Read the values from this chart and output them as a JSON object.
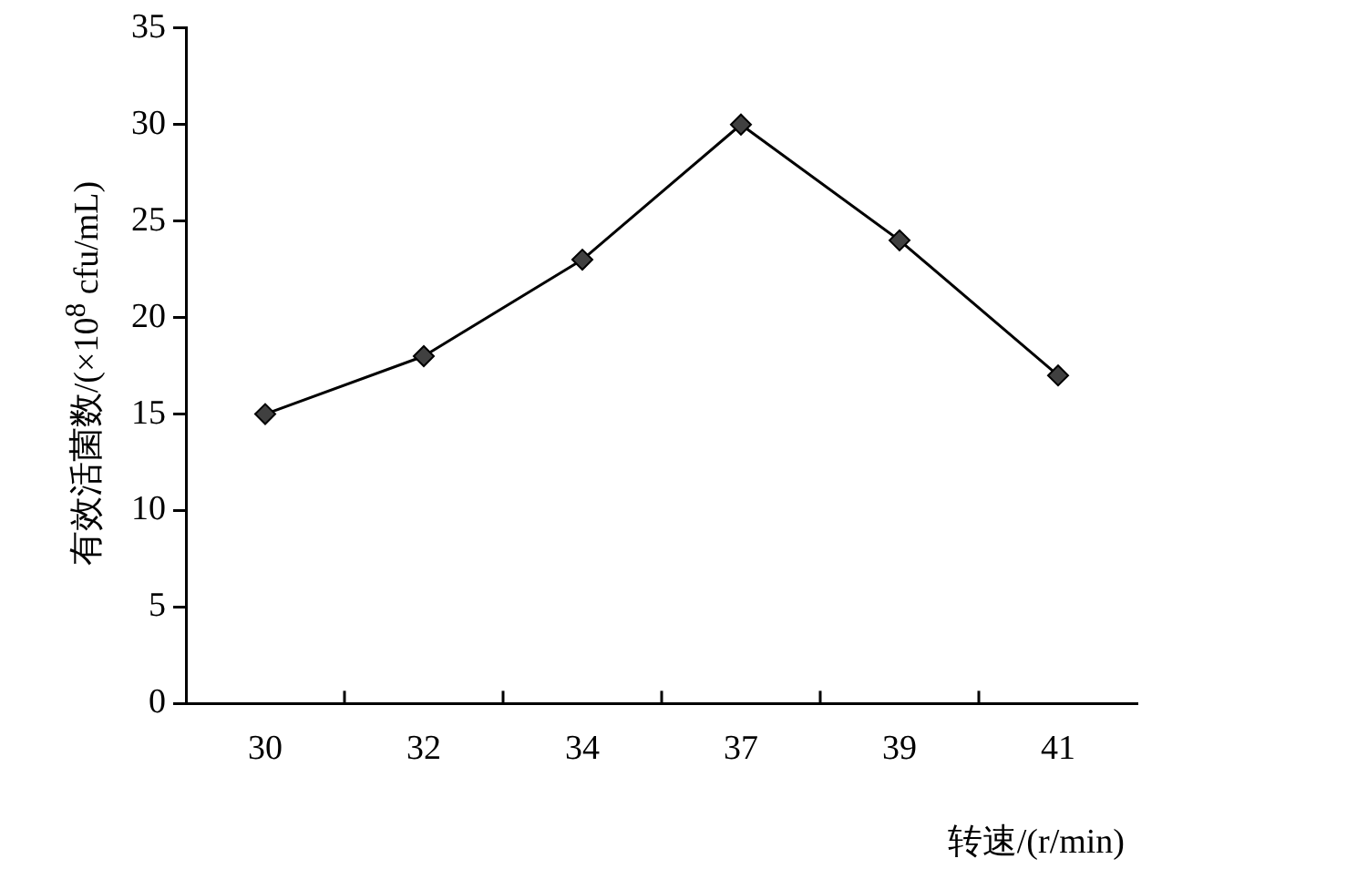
{
  "chart_data": {
    "type": "line",
    "xlabel": "转速/(r/min)",
    "ylabel": "有效活菌数/(×10$^{8}$ cfu/mL)",
    "categories": [
      "30",
      "32",
      "34",
      "37",
      "39",
      "41"
    ],
    "series": [
      {
        "color": "#000000",
        "values": [
          15,
          18,
          23,
          30,
          24,
          17
        ]
      }
    ],
    "ylim": [
      0,
      35
    ],
    "yticks": [
      0,
      5,
      10,
      15,
      20,
      25,
      30,
      35
    ],
    "grid": false,
    "legend": false,
    "marker": "diamond",
    "line_style": "solid"
  }
}
